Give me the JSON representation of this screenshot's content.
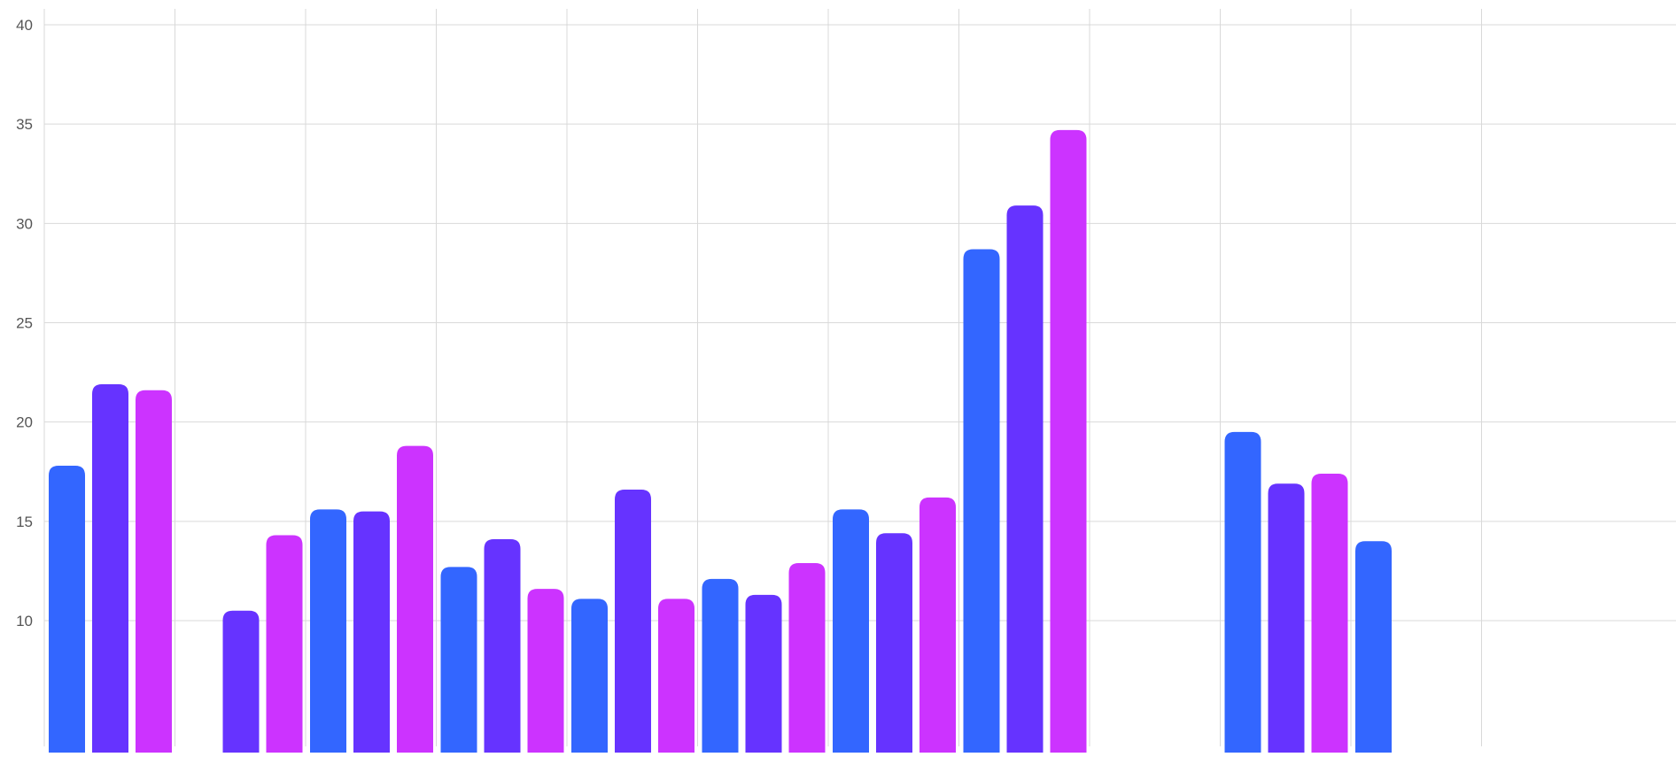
{
  "chart_data": {
    "type": "bar",
    "categories": [
      "",
      "",
      "",
      "",
      "",
      "",
      "",
      "",
      "",
      "",
      ""
    ],
    "series": [
      {
        "color": "#3366ff",
        "values": [
          17.8,
          null,
          15.6,
          12.7,
          11.1,
          12.1,
          15.6,
          28.7,
          null,
          19.5,
          14.0
        ]
      },
      {
        "color": "#6633ff",
        "values": [
          21.9,
          10.5,
          15.5,
          14.1,
          16.6,
          11.3,
          14.4,
          30.9,
          null,
          16.9,
          null
        ]
      },
      {
        "color": "#cc33ff",
        "values": [
          21.6,
          14.3,
          18.8,
          11.6,
          11.1,
          12.9,
          16.2,
          34.7,
          null,
          17.4,
          null
        ]
      }
    ],
    "ylim": [
      10,
      40
    ],
    "yticks": [
      10,
      15,
      20,
      25,
      30,
      35,
      40
    ],
    "ytick_labels": [
      "10",
      "15",
      "20",
      "25",
      "30",
      "35",
      "40"
    ],
    "xlabel": "",
    "ylabel": "",
    "grid": true
  }
}
